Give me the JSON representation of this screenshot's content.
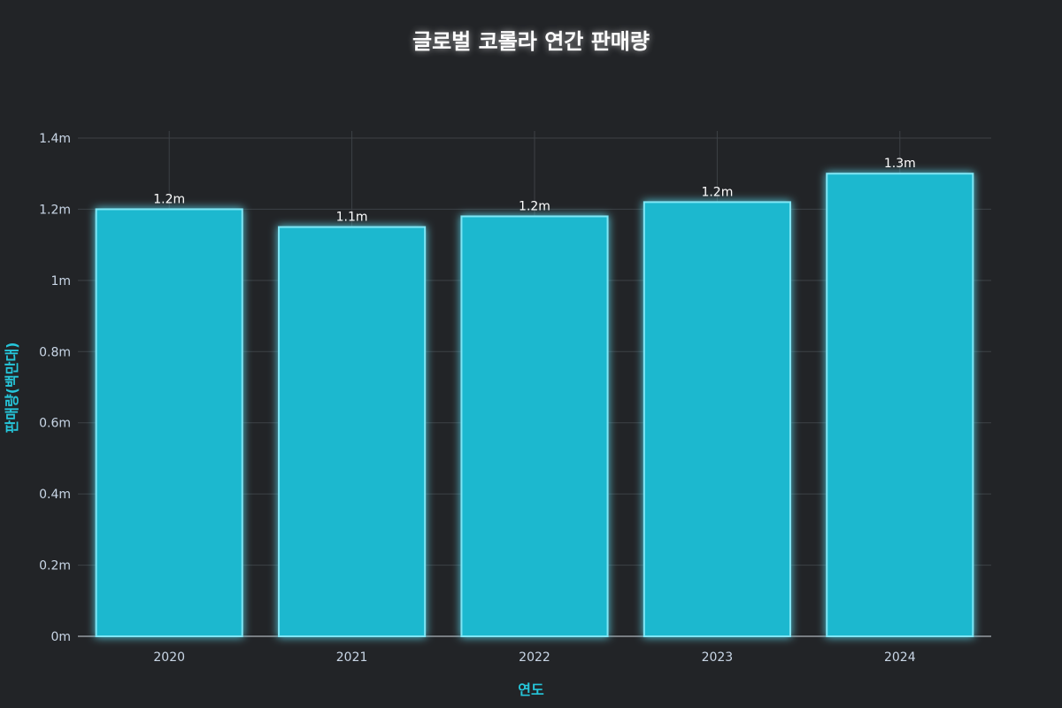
{
  "chart_data": {
    "type": "bar",
    "title": "글로벌 코롤라 연간 판매량",
    "xlabel": "연도",
    "ylabel": "판매량(백만대)",
    "categories": [
      "2020",
      "2021",
      "2022",
      "2023",
      "2024"
    ],
    "values": [
      1.2,
      1.15,
      1.18,
      1.22,
      1.3
    ],
    "data_labels": [
      "1.2m",
      "1.1m",
      "1.2m",
      "1.2m",
      "1.3m"
    ],
    "ylim": [
      0,
      1.4
    ],
    "yticks": [
      0,
      0.2,
      0.4,
      0.6,
      0.8,
      1,
      1.2,
      1.4
    ],
    "ytick_labels": [
      "0m",
      "0.2m",
      "0.4m",
      "0.6m",
      "0.8m",
      "1m",
      "1.2m",
      "1.4m"
    ],
    "grid": true,
    "bar_color": "#1fb8cf",
    "glow_color": "#7fe6f5"
  }
}
